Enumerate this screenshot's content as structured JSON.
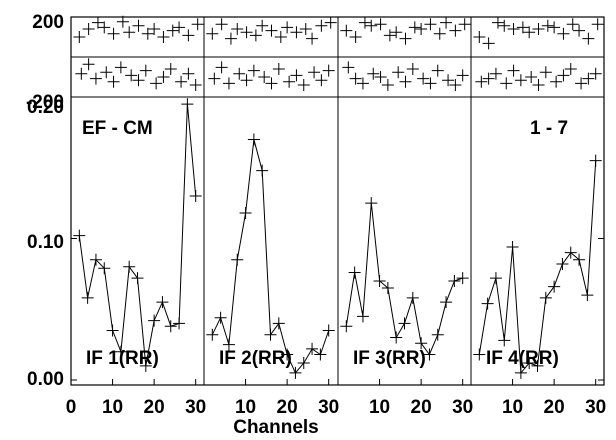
{
  "chart_data": {
    "type": "line",
    "title": "",
    "corner_labels": {
      "left": "EF - CM",
      "right": "1 - 7"
    },
    "xlabel": "Channels",
    "xlim": [
      0,
      32
    ],
    "x_ticks": [
      0,
      10,
      20,
      30
    ],
    "amp_ylim": [
      0,
      0.2
    ],
    "amp_y_ticks": [
      "0.00",
      "0.10",
      "0.20"
    ],
    "phase_y_ticks": [
      "200",
      "-200"
    ],
    "marker": "+",
    "panels": [
      {
        "label": "IF 1(RR)",
        "x": [
          2,
          4,
          6,
          8,
          10,
          12,
          14,
          16,
          18,
          20,
          22,
          24,
          26,
          28,
          30
        ],
        "amplitude": [
          0.102,
          0.058,
          0.085,
          0.079,
          0.035,
          0.02,
          0.08,
          0.072,
          0.01,
          0.042,
          0.055,
          0.038,
          0.04,
          0.195,
          0.13
        ],
        "phase_upper": [
          100,
          150,
          190,
          160,
          120,
          195,
          130,
          170,
          120,
          150,
          100,
          140,
          160,
          110,
          180
        ],
        "phase_lower": [
          -80,
          -20,
          -110,
          -70,
          -130,
          -40,
          -90,
          -120,
          -60,
          -140,
          -100,
          -50,
          -130,
          -80,
          -150
        ]
      },
      {
        "label": "IF 2(RR)",
        "x": [
          2,
          4,
          6,
          8,
          10,
          12,
          14,
          16,
          18,
          20,
          22,
          24,
          26,
          28,
          30
        ],
        "amplitude": [
          0.032,
          0.044,
          0.025,
          0.085,
          0.118,
          0.17,
          0.148,
          0.032,
          0.04,
          0.018,
          0.005,
          0.012,
          0.022,
          0.018,
          0.035
        ],
        "phase_upper": [
          120,
          180,
          90,
          150,
          130,
          110,
          170,
          140,
          100,
          160,
          130,
          150,
          90,
          170,
          190
        ],
        "phase_lower": [
          -110,
          -40,
          -140,
          -80,
          -120,
          -60,
          -100,
          -140,
          -50,
          -130,
          -90,
          -150,
          -70,
          -120,
          -60
        ]
      },
      {
        "label": "IF 3(RR)",
        "x": [
          2,
          4,
          6,
          8,
          10,
          12,
          14,
          16,
          18,
          20,
          22,
          24,
          26,
          28,
          30
        ],
        "amplitude": [
          0.038,
          0.076,
          0.045,
          0.125,
          0.07,
          0.065,
          0.03,
          0.04,
          0.058,
          0.026,
          0.018,
          0.032,
          0.055,
          0.07,
          0.072
        ],
        "phase_upper": [
          140,
          100,
          190,
          170,
          180,
          110,
          130,
          90,
          160,
          150,
          180,
          120,
          190,
          140,
          180
        ],
        "phase_lower": [
          -40,
          -110,
          -140,
          -80,
          -100,
          -150,
          -70,
          -130,
          -50,
          -110,
          -140,
          -60,
          -120,
          -150,
          -90
        ]
      },
      {
        "label": "IF 4(RR)",
        "x": [
          2,
          4,
          6,
          8,
          10,
          12,
          14,
          16,
          18,
          20,
          22,
          24,
          26,
          28,
          30
        ],
        "amplitude": [
          0.018,
          0.054,
          0.072,
          0.028,
          0.094,
          0.005,
          0.012,
          0.01,
          0.058,
          0.066,
          0.082,
          0.09,
          0.085,
          0.06,
          0.155
        ],
        "phase_upper": [
          100,
          60,
          190,
          170,
          150,
          160,
          130,
          150,
          170,
          160,
          120,
          180,
          140,
          90,
          180
        ],
        "phase_lower": [
          -130,
          -110,
          -80,
          -140,
          -60,
          -120,
          -100,
          -150,
          -70,
          -130,
          -90,
          -50,
          -140,
          -110,
          -80
        ]
      }
    ]
  }
}
